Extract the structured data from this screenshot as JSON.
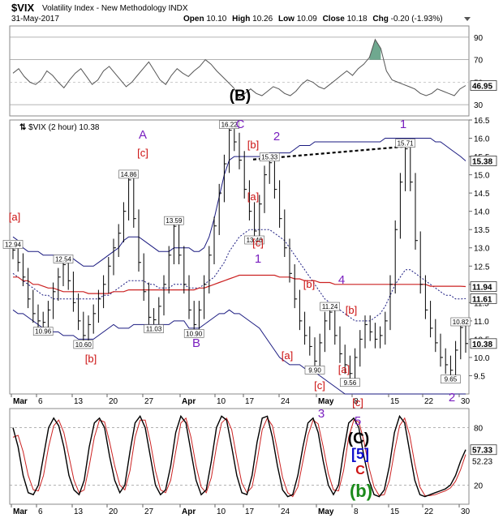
{
  "header": {
    "symbol": "$VIX",
    "name": "Volatility Index - New Methodology",
    "exchange": "INDX",
    "date": "31-May-2017",
    "open_label": "Open",
    "open": "10.10",
    "high_label": "High",
    "high": "10.26",
    "low_label": "Low",
    "low": "10.09",
    "close_label": "Close",
    "close": "10.18",
    "chg_label": "Chg",
    "chg": "-0.20 (-1.93%)"
  },
  "colors": {
    "price": "#000000",
    "bollinger": "#1a1a80",
    "sma_short": "#1a1a80",
    "sma_long": "#cc2222",
    "wave_purple": "#7a1fbf",
    "wave_red": "#cc1111",
    "wave_blue": "#1010cc",
    "wave_green": "#1a8a1a",
    "rsi_fill": "#6fa88f",
    "stoch_k": "#000000",
    "stoch_d": "#cc2222"
  },
  "chart_data": [
    {
      "type": "line",
      "panel": "rsi",
      "ylim": [
        20,
        100
      ],
      "ticks": [
        30,
        50,
        70,
        90
      ],
      "last_value_label": "46.95",
      "series": [
        {
          "values": [
            58,
            62,
            55,
            50,
            48,
            52,
            60,
            56,
            50,
            45,
            52,
            58,
            62,
            55,
            48,
            52,
            60,
            64,
            58,
            52,
            46,
            50,
            56,
            62,
            68,
            60,
            52,
            48,
            56,
            62,
            58,
            55,
            60,
            64,
            70,
            66,
            60,
            55,
            50,
            45,
            36,
            40,
            44,
            40,
            38,
            42,
            46,
            44,
            40,
            38,
            42,
            48,
            52,
            50,
            46,
            44,
            48,
            52,
            56,
            60,
            56,
            62,
            66,
            72,
            88,
            80,
            60,
            52,
            50,
            48,
            46,
            44,
            40,
            38,
            40,
            44,
            42,
            40,
            38,
            44,
            47
          ]
        }
      ]
    },
    {
      "type": "line",
      "panel": "price",
      "title": "$VIX (2 hour) 10.38",
      "ylim": [
        9.0,
        16.5
      ],
      "yticks": [
        "9.5",
        "10.0",
        "10.5",
        "11.0",
        "11.5",
        "12.0",
        "12.5",
        "13.0",
        "13.5",
        "14.0",
        "14.5",
        "15.0",
        "15.5",
        "16.0",
        "16.5"
      ],
      "xticks": [
        "Mar",
        "6",
        "13",
        "20",
        "27",
        "Apr",
        "10",
        "17",
        "24",
        "May",
        "8",
        "15",
        "22",
        "30"
      ],
      "right_labels": [
        "15.38",
        "11.94",
        "11.61",
        "10.38"
      ],
      "series": [
        {
          "values": [
            12.94,
            12.6,
            12.2,
            11.6,
            11.2,
            11.0,
            10.96,
            11.3,
            11.8,
            12.2,
            12.54,
            12.1,
            11.5,
            11.0,
            10.6,
            10.9,
            11.2,
            11.6,
            12.0,
            12.5,
            13.0,
            13.4,
            14.0,
            14.86,
            13.8,
            12.6,
            11.8,
            11.1,
            11.03,
            11.4,
            12.0,
            12.8,
            13.59,
            12.8,
            12.0,
            11.3,
            10.9,
            11.3,
            12.0,
            12.8,
            13.6,
            14.5,
            15.3,
            16.22,
            15.9,
            15.4,
            14.6,
            14.0,
            13.46,
            14.2,
            15.0,
            15.33,
            14.6,
            13.8,
            13.0,
            12.3,
            11.6,
            11.0,
            10.6,
            10.3,
            9.9,
            10.4,
            11.0,
            11.24,
            10.6,
            10.1,
            9.8,
            9.56,
            10.0,
            10.5,
            10.9,
            10.7,
            10.5,
            10.6,
            11.0,
            12.0,
            13.5,
            14.8,
            15.71,
            14.8,
            13.2,
            12.0,
            11.3,
            10.8,
            10.4,
            10.0,
            9.8,
            9.65,
            10.2,
            10.82,
            10.38
          ]
        },
        {
          "values": [
            12.3,
            12.2,
            12.1,
            12.0,
            11.9,
            11.8,
            11.7,
            11.7,
            11.6,
            11.6,
            11.6,
            11.6,
            11.6,
            11.6,
            11.6,
            11.6,
            11.6,
            11.6,
            11.7,
            11.7,
            11.8,
            11.9,
            12.0,
            12.1,
            12.1,
            12.1,
            12.1,
            12.0,
            12.0,
            11.9,
            11.9,
            11.9,
            12.0,
            12.0,
            12.0,
            11.9,
            11.9,
            11.9,
            12.0,
            12.1,
            12.2,
            12.4,
            12.6,
            12.9,
            13.1,
            13.3,
            13.4,
            13.5,
            13.5,
            13.5,
            13.5,
            13.5,
            13.4,
            13.3,
            13.2,
            13.0,
            12.8,
            12.6,
            12.4,
            12.2,
            12.0,
            11.8,
            11.6,
            11.5,
            11.4,
            11.3,
            11.2,
            11.1,
            11.0,
            11.0,
            11.0,
            11.0,
            11.1,
            11.2,
            11.4,
            11.7,
            12.0,
            12.2,
            12.4,
            12.4,
            12.3,
            12.2,
            12.1,
            12.0,
            11.9,
            11.8,
            11.7,
            11.7,
            11.6,
            11.6,
            11.61
          ]
        },
        {
          "values": [
            12.2,
            12.2,
            12.1,
            12.1,
            12.0,
            12.0,
            11.95,
            11.9,
            11.9,
            11.85,
            11.8,
            11.8,
            11.8,
            11.8,
            11.8,
            11.75,
            11.75,
            11.75,
            11.75,
            11.75,
            11.8,
            11.8,
            11.8,
            11.85,
            11.85,
            11.85,
            11.85,
            11.85,
            11.85,
            11.85,
            11.85,
            11.85,
            11.85,
            11.85,
            11.85,
            11.85,
            11.85,
            11.9,
            11.9,
            11.95,
            12.0,
            12.05,
            12.1,
            12.15,
            12.2,
            12.25,
            12.25,
            12.25,
            12.25,
            12.25,
            12.25,
            12.25,
            12.25,
            12.2,
            12.2,
            12.2,
            12.15,
            12.15,
            12.1,
            12.1,
            12.1,
            12.05,
            12.05,
            12.05,
            12.0,
            12.0,
            12.0,
            12.0,
            12.0,
            12.0,
            12.0,
            12.0,
            12.0,
            12.0,
            12.0,
            12.0,
            12.0,
            12.0,
            12.0,
            12.0,
            12.0,
            12.0,
            12.0,
            11.95,
            11.95,
            11.95,
            11.95,
            11.95,
            11.95,
            11.95,
            11.94
          ]
        },
        {
          "values": [
            13.3,
            13.2,
            13.0,
            12.9,
            12.9,
            12.9,
            12.8,
            12.8,
            12.8,
            12.8,
            12.8,
            12.8,
            12.7,
            12.6,
            12.5,
            12.5,
            12.5,
            12.6,
            12.7,
            12.8,
            12.9,
            13.0,
            13.2,
            13.3,
            13.3,
            13.3,
            13.2,
            13.1,
            13.0,
            12.9,
            12.9,
            12.9,
            13.0,
            13.0,
            13.0,
            13.0,
            12.9,
            12.9,
            13.0,
            13.3,
            13.8,
            14.4,
            15.0,
            15.4,
            15.5,
            15.5,
            15.5,
            15.5,
            15.5,
            15.5,
            15.5,
            15.6,
            15.6,
            15.6,
            15.6,
            15.6,
            15.7,
            15.8,
            15.8,
            15.8,
            15.9,
            15.9,
            15.9,
            15.9,
            15.9,
            15.9,
            15.9,
            15.9,
            15.9,
            15.9,
            15.9,
            15.9,
            15.9,
            15.9,
            16.0,
            16.0,
            16.0,
            16.0,
            16.0,
            16.0,
            16.0,
            16.0,
            16.0,
            16.0,
            15.9,
            15.9,
            15.8,
            15.7,
            15.6,
            15.5,
            15.38
          ]
        },
        {
          "values": [
            11.3,
            11.2,
            11.2,
            11.1,
            11.0,
            10.9,
            10.8,
            10.8,
            10.7,
            10.7,
            10.6,
            10.6,
            10.6,
            10.5,
            10.5,
            10.5,
            10.5,
            10.6,
            10.7,
            10.8,
            10.9,
            10.8,
            10.8,
            10.8,
            10.9,
            10.9,
            10.9,
            10.9,
            10.9,
            10.9,
            10.9,
            10.9,
            11.0,
            11.0,
            11.0,
            10.8,
            10.8,
            10.8,
            10.9,
            11.0,
            11.1,
            11.2,
            11.2,
            11.3,
            11.2,
            11.2,
            11.1,
            11.0,
            10.9,
            10.8,
            10.6,
            10.4,
            10.2,
            10.0,
            9.9,
            9.8,
            9.8,
            9.8,
            9.7,
            9.7,
            9.6,
            9.5,
            9.4,
            9.3,
            9.2,
            9.1,
            9.0,
            9.0,
            9.0,
            9.0,
            9.0,
            9.0,
            9.0,
            9.0,
            9.0,
            9.0,
            9.0,
            9.0,
            9.0,
            9.0,
            9.0,
            9.0,
            9.0,
            9.0,
            9.0,
            9.0,
            9.0,
            9.0,
            9.0,
            9.0,
            9.0
          ]
        }
      ],
      "price_labels": [
        "12.94",
        "10.96",
        "12.54",
        "10.60",
        "14.86",
        "13.59",
        "11.03",
        "10.90",
        "16.22",
        "15.33",
        "13.46",
        "11.24",
        "9.90",
        "9.56",
        "15.71",
        "10.82",
        "9.65"
      ],
      "wave_labels": [
        "[a]",
        "[b]",
        "A",
        "[c]",
        "B",
        "(B)",
        "C",
        "[b]",
        "[a]",
        "2",
        "[c]",
        "1",
        "[b]",
        "4",
        "[b]",
        "[a]",
        "[a]",
        "[c]",
        "[c]",
        "1",
        "2",
        "3",
        "5"
      ]
    },
    {
      "type": "line",
      "panel": "stochastic",
      "ylim": [
        0,
        100
      ],
      "ticks": [
        20,
        80
      ],
      "last_value_labels": [
        "57.33",
        "52.23"
      ],
      "xticks": [
        "Mar",
        "6",
        "13",
        "20",
        "27",
        "Apr",
        "10",
        "17",
        "24",
        "May",
        "8",
        "15",
        "22",
        "30"
      ],
      "series": [
        {
          "values": [
            80,
            60,
            30,
            12,
            10,
            20,
            50,
            80,
            90,
            82,
            60,
            30,
            15,
            10,
            25,
            60,
            85,
            90,
            80,
            50,
            25,
            12,
            20,
            55,
            85,
            92,
            80,
            50,
            20,
            10,
            15,
            40,
            75,
            92,
            85,
            55,
            25,
            10,
            15,
            45,
            80,
            92,
            88,
            60,
            30,
            12,
            10,
            30,
            65,
            90,
            92,
            70,
            40,
            15,
            8,
            10,
            30,
            60,
            85,
            90,
            75,
            45,
            20,
            10,
            20,
            55,
            85,
            90,
            80,
            50,
            25,
            10,
            8,
            15,
            40,
            75,
            92,
            85,
            55,
            25,
            10,
            8,
            10,
            12,
            14,
            16,
            20,
            30,
            45,
            57
          ]
        },
        {
          "values": [
            70,
            72,
            55,
            30,
            15,
            14,
            30,
            60,
            82,
            88,
            75,
            50,
            25,
            12,
            15,
            40,
            70,
            88,
            86,
            65,
            40,
            20,
            15,
            35,
            70,
            88,
            88,
            65,
            35,
            15,
            12,
            25,
            55,
            85,
            90,
            70,
            40,
            18,
            12,
            28,
            60,
            85,
            90,
            78,
            48,
            22,
            12,
            18,
            45,
            78,
            90,
            82,
            56,
            28,
            12,
            8,
            18,
            45,
            72,
            88,
            84,
            60,
            32,
            15,
            14,
            35,
            70,
            88,
            86,
            66,
            38,
            18,
            9,
            10,
            25,
            55,
            82,
            90,
            72,
            42,
            18,
            9,
            9,
            10,
            12,
            14,
            17,
            24,
            36,
            52
          ]
        }
      ],
      "wave_labels": [
        "(C)",
        "[5]",
        "C",
        "(b)"
      ]
    }
  ]
}
